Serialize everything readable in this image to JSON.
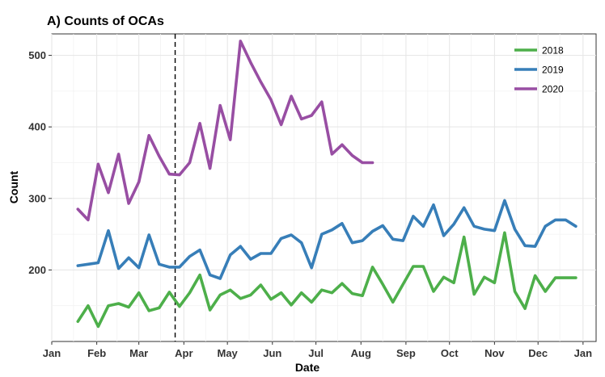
{
  "chart_data": {
    "type": "line",
    "title": "A) Counts of OCAs",
    "xlabel": "Date",
    "ylabel": "Count",
    "x_ticks": [
      "Jan",
      "Feb",
      "Mar",
      "Apr",
      "May",
      "Jun",
      "Jul",
      "Aug",
      "Sep",
      "Oct",
      "Nov",
      "Dec",
      "Jan"
    ],
    "y_ticks": [
      200,
      300,
      400,
      500
    ],
    "xlim": [
      "2020-01-01",
      "2021-01-10"
    ],
    "ylim": [
      100,
      530
    ],
    "grid": true,
    "legend_position": "top-right",
    "vline": {
      "x": "2020-03-26",
      "style": "dashed"
    },
    "series": [
      {
        "name": "2018",
        "color": "#4daf4a",
        "x": [
          "2020-01-19",
          "2020-01-26",
          "2020-02-02",
          "2020-02-09",
          "2020-02-16",
          "2020-02-23",
          "2020-03-01",
          "2020-03-08",
          "2020-03-15",
          "2020-03-22",
          "2020-03-29",
          "2020-04-05",
          "2020-04-12",
          "2020-04-19",
          "2020-04-26",
          "2020-05-03",
          "2020-05-10",
          "2020-05-17",
          "2020-05-24",
          "2020-05-31",
          "2020-06-07",
          "2020-06-14",
          "2020-06-21",
          "2020-06-28",
          "2020-07-05",
          "2020-07-12",
          "2020-07-19",
          "2020-07-26",
          "2020-08-02",
          "2020-08-09",
          "2020-08-16",
          "2020-08-23",
          "2020-08-30",
          "2020-09-06",
          "2020-09-13",
          "2020-09-20",
          "2020-09-27",
          "2020-10-04",
          "2020-10-11",
          "2020-10-18",
          "2020-10-25",
          "2020-11-01",
          "2020-11-08",
          "2020-11-15",
          "2020-11-22",
          "2020-11-29",
          "2020-12-06",
          "2020-12-13",
          "2020-12-20",
          "2020-12-27"
        ],
        "values": [
          128,
          150,
          121,
          150,
          153,
          148,
          168,
          143,
          147,
          169,
          149,
          168,
          193,
          144,
          165,
          172,
          160,
          165,
          179,
          159,
          168,
          151,
          168,
          155,
          172,
          168,
          181,
          167,
          164,
          204,
          180,
          155,
          180,
          205,
          205,
          170,
          190,
          182,
          246,
          166,
          190,
          182,
          252,
          170,
          146,
          192,
          170,
          189,
          189,
          189
        ]
      },
      {
        "name": "2019",
        "color": "#377eb8",
        "x": [
          "2020-01-19",
          "2020-01-26",
          "2020-02-02",
          "2020-02-09",
          "2020-02-16",
          "2020-02-23",
          "2020-03-01",
          "2020-03-08",
          "2020-03-15",
          "2020-03-22",
          "2020-03-29",
          "2020-04-05",
          "2020-04-12",
          "2020-04-19",
          "2020-04-26",
          "2020-05-03",
          "2020-05-10",
          "2020-05-17",
          "2020-05-24",
          "2020-05-31",
          "2020-06-07",
          "2020-06-14",
          "2020-06-21",
          "2020-06-28",
          "2020-07-05",
          "2020-07-12",
          "2020-07-19",
          "2020-07-26",
          "2020-08-02",
          "2020-08-09",
          "2020-08-16",
          "2020-08-23",
          "2020-08-30",
          "2020-09-06",
          "2020-09-13",
          "2020-09-20",
          "2020-09-27",
          "2020-10-04",
          "2020-10-11",
          "2020-10-18",
          "2020-10-25",
          "2020-11-01",
          "2020-11-08",
          "2020-11-15",
          "2020-11-22",
          "2020-11-29",
          "2020-12-06",
          "2020-12-13",
          "2020-12-20",
          "2020-12-27"
        ],
        "values": [
          206,
          208,
          210,
          255,
          202,
          217,
          203,
          249,
          208,
          204,
          204,
          219,
          228,
          193,
          188,
          221,
          233,
          215,
          223,
          223,
          244,
          249,
          238,
          203,
          250,
          256,
          265,
          238,
          241,
          254,
          262,
          243,
          241,
          275,
          261,
          291,
          248,
          264,
          287,
          261,
          257,
          255,
          297,
          257,
          234,
          233,
          261,
          270,
          270,
          261
        ]
      },
      {
        "name": "2020",
        "color": "#984ea3",
        "x": [
          "2020-01-19",
          "2020-01-26",
          "2020-02-02",
          "2020-02-09",
          "2020-02-16",
          "2020-02-23",
          "2020-03-01",
          "2020-03-08",
          "2020-03-15",
          "2020-03-22",
          "2020-03-29",
          "2020-04-05",
          "2020-04-12",
          "2020-04-19",
          "2020-04-26",
          "2020-05-03",
          "2020-05-10",
          "2020-05-17",
          "2020-05-24",
          "2020-05-31",
          "2020-06-07",
          "2020-06-14",
          "2020-06-21",
          "2020-06-28",
          "2020-07-05",
          "2020-07-12",
          "2020-07-19",
          "2020-07-26",
          "2020-08-02",
          "2020-08-09"
        ],
        "values": [
          285,
          270,
          348,
          308,
          362,
          293,
          323,
          388,
          359,
          334,
          333,
          350,
          405,
          342,
          430,
          382,
          520,
          490,
          463,
          438,
          403,
          443,
          411,
          416,
          435,
          362,
          375,
          360,
          350,
          350
        ]
      }
    ]
  }
}
